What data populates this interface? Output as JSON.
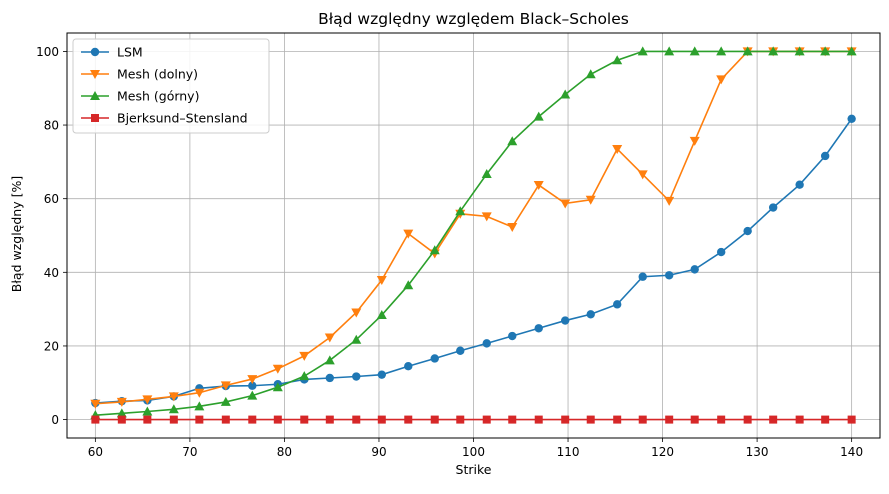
{
  "chart_data": {
    "type": "line",
    "title": "Błąd względny względem Black–Scholes",
    "xlabel": "Strike",
    "ylabel": "Błąd względny [%]",
    "xlim": [
      57.0,
      143.0
    ],
    "ylim": [
      -5.0,
      105.0
    ],
    "xticks": [
      60,
      70,
      80,
      90,
      100,
      110,
      120,
      130,
      140
    ],
    "yticks": [
      0,
      20,
      40,
      60,
      80,
      100
    ],
    "grid": true,
    "legend_position": "upper-left",
    "x": [
      60.0,
      62.8,
      65.5,
      68.3,
      71.0,
      73.8,
      76.6,
      79.3,
      82.1,
      84.8,
      87.6,
      90.3,
      93.1,
      95.9,
      98.6,
      101.4,
      104.1,
      106.9,
      109.7,
      112.4,
      115.2,
      117.9,
      120.7,
      123.4,
      126.2,
      129.0,
      131.7,
      134.5,
      137.2,
      140.0
    ],
    "series": [
      {
        "name": "LSM",
        "color": "#1f77b4",
        "marker": "circle",
        "values": [
          4.5,
          5.0,
          5.2,
          6.3,
          8.5,
          9.1,
          9.2,
          9.6,
          10.9,
          11.3,
          11.7,
          12.2,
          14.5,
          16.6,
          18.7,
          20.7,
          22.7,
          24.8,
          26.9,
          28.6,
          31.3,
          38.8,
          39.2,
          40.8,
          45.5,
          51.2,
          57.6,
          63.8,
          71.6,
          81.7
        ]
      },
      {
        "name": "Mesh (dolny)",
        "color": "#ff7f0e",
        "marker": "triangle-down",
        "values": [
          4.3,
          4.8,
          5.5,
          6.3,
          7.3,
          9.3,
          11.0,
          13.8,
          17.3,
          22.3,
          29.1,
          37.9,
          50.5,
          45.1,
          55.9,
          55.2,
          52.3,
          63.7,
          58.7,
          59.7,
          73.5,
          66.6,
          59.4,
          75.7,
          92.4,
          100.0,
          100.0,
          100.0,
          100.0,
          100.0
        ]
      },
      {
        "name": "Mesh (górny)",
        "color": "#2ca02c",
        "marker": "triangle-up",
        "values": [
          1.2,
          1.7,
          2.2,
          2.8,
          3.6,
          4.8,
          6.5,
          8.8,
          11.8,
          16.1,
          21.7,
          28.4,
          36.5,
          46.0,
          56.6,
          66.7,
          75.6,
          82.3,
          88.3,
          93.8,
          97.6,
          100.0,
          100.0,
          100.0,
          100.0,
          100.0,
          100.0,
          100.0,
          100.0,
          100.0
        ]
      },
      {
        "name": "Bjerksund–Stensland",
        "color": "#d62728",
        "marker": "square",
        "values": [
          0.0,
          0.0,
          0.0,
          0.0,
          0.0,
          0.0,
          0.0,
          0.0,
          0.0,
          0.0,
          0.0,
          0.0,
          0.0,
          0.0,
          0.0,
          0.0,
          0.0,
          0.0,
          0.0,
          0.0,
          0.0,
          0.0,
          0.0,
          0.0,
          0.0,
          0.0,
          0.0,
          0.0,
          0.0,
          0.0
        ]
      }
    ]
  }
}
